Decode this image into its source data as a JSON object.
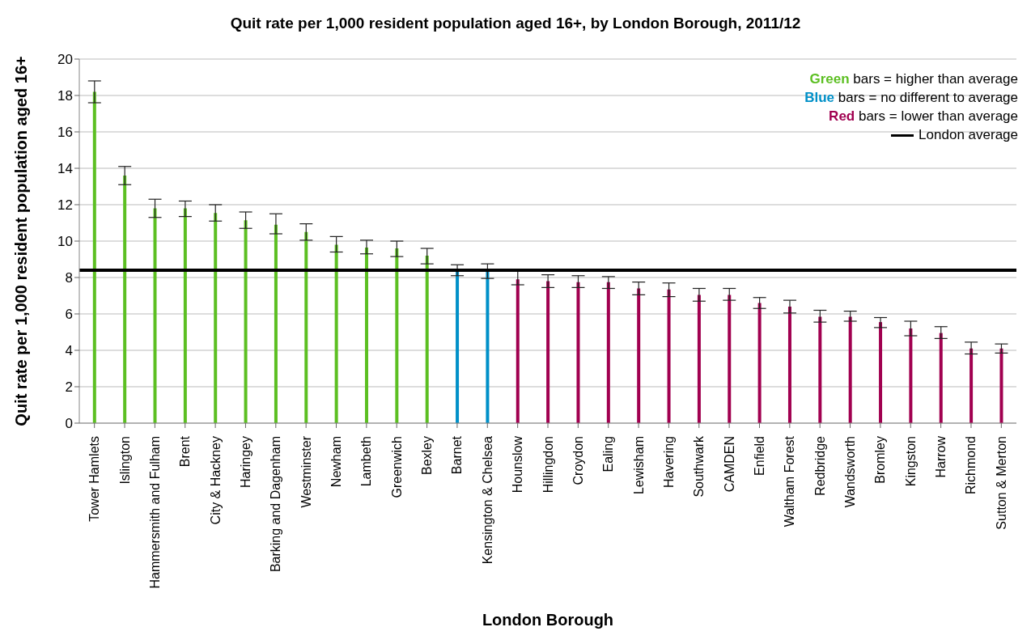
{
  "chart_data": {
    "type": "bar",
    "title": "Quit rate per 1,000 resident population aged 16+, by London Borough, 2011/12",
    "xlabel": "London Borough",
    "ylabel": "Quit rate per 1,000 resident population aged 16+",
    "categories": [
      "Tower Hamlets",
      "Islington",
      "Hammersmith and Fulham",
      "Brent",
      "City & Hackney",
      "Haringey",
      "Barking and Dagenham",
      "Westminster",
      "Newham",
      "Lambeth",
      "Greenwich",
      "Bexley",
      "Barnet",
      "Kensington & Chelsea",
      "Hounslow",
      "Hillingdon",
      "Croydon",
      "Ealing",
      "Lewisham",
      "Havering",
      "Southwark",
      "CAMDEN",
      "Enfield",
      "Waltham Forest",
      "Redbridge",
      "Wandsworth",
      "Bromley",
      "Kingston",
      "Harrow",
      "Richmond",
      "Sutton & Merton"
    ],
    "stacked": true,
    "series": [
      {
        "name": "Green bars = higher than average",
        "color": "#5cbf22",
        "values": [
          18.2,
          13.6,
          11.8,
          11.8,
          11.55,
          11.15,
          10.9,
          10.5,
          9.8,
          9.65,
          9.6,
          9.2,
          null,
          null,
          null,
          null,
          null,
          null,
          null,
          null,
          null,
          null,
          null,
          null,
          null,
          null,
          null,
          null,
          null,
          null,
          null
        ],
        "errors": [
          [
            17.6,
            18.8
          ],
          [
            13.1,
            14.1
          ],
          [
            11.3,
            12.3
          ],
          [
            11.35,
            12.2
          ],
          [
            11.1,
            12.0
          ],
          [
            10.7,
            11.6
          ],
          [
            10.4,
            11.5
          ],
          [
            10.05,
            10.95
          ],
          [
            9.4,
            10.25
          ],
          [
            9.3,
            10.05
          ],
          [
            9.15,
            10.0
          ],
          [
            8.75,
            9.6
          ],
          null,
          null,
          null,
          null,
          null,
          null,
          null,
          null,
          null,
          null,
          null,
          null,
          null,
          null,
          null,
          null,
          null,
          null,
          null
        ]
      },
      {
        "name": "Blue bars = no different to average",
        "color": "#0090c8",
        "values": [
          null,
          null,
          null,
          null,
          null,
          null,
          null,
          null,
          null,
          null,
          null,
          null,
          8.4,
          8.4,
          null,
          null,
          null,
          null,
          null,
          null,
          null,
          null,
          null,
          null,
          null,
          null,
          null,
          null,
          null,
          null,
          null
        ],
        "errors": [
          null,
          null,
          null,
          null,
          null,
          null,
          null,
          null,
          null,
          null,
          null,
          null,
          [
            8.1,
            8.7
          ],
          [
            7.95,
            8.75
          ],
          null,
          null,
          null,
          null,
          null,
          null,
          null,
          null,
          null,
          null,
          null,
          null,
          null,
          null,
          null,
          null,
          null
        ]
      },
      {
        "name": "Red bars = lower than average",
        "color": "#a10050",
        "values": [
          null,
          null,
          null,
          null,
          null,
          null,
          null,
          null,
          null,
          null,
          null,
          null,
          null,
          null,
          7.9,
          7.8,
          7.75,
          7.75,
          7.4,
          7.35,
          7.05,
          7.05,
          6.6,
          6.4,
          5.85,
          5.85,
          5.55,
          5.2,
          4.95,
          4.1,
          4.1
        ],
        "errors": [
          null,
          null,
          null,
          null,
          null,
          null,
          null,
          null,
          null,
          null,
          null,
          null,
          null,
          null,
          [
            7.6,
            8.35
          ],
          [
            7.45,
            8.15
          ],
          [
            7.45,
            8.1
          ],
          [
            7.4,
            8.05
          ],
          [
            7.05,
            7.75
          ],
          [
            6.95,
            7.7
          ],
          [
            6.7,
            7.4
          ],
          [
            6.75,
            7.4
          ],
          [
            6.3,
            6.9
          ],
          [
            6.05,
            6.75
          ],
          [
            5.55,
            6.2
          ],
          [
            5.6,
            6.15
          ],
          [
            5.25,
            5.8
          ],
          [
            4.8,
            5.6
          ],
          [
            4.65,
            5.3
          ],
          [
            3.8,
            4.45
          ],
          [
            3.85,
            4.35
          ]
        ]
      }
    ],
    "ref_lines": [
      {
        "axis": "y",
        "value": 8.4,
        "label": "London average",
        "color": "#000000"
      }
    ],
    "ylim": [
      0,
      20
    ],
    "yticks": [
      0,
      2,
      4,
      6,
      8,
      10,
      12,
      14,
      16,
      18,
      20
    ],
    "grid": "y",
    "legend": "top right"
  }
}
